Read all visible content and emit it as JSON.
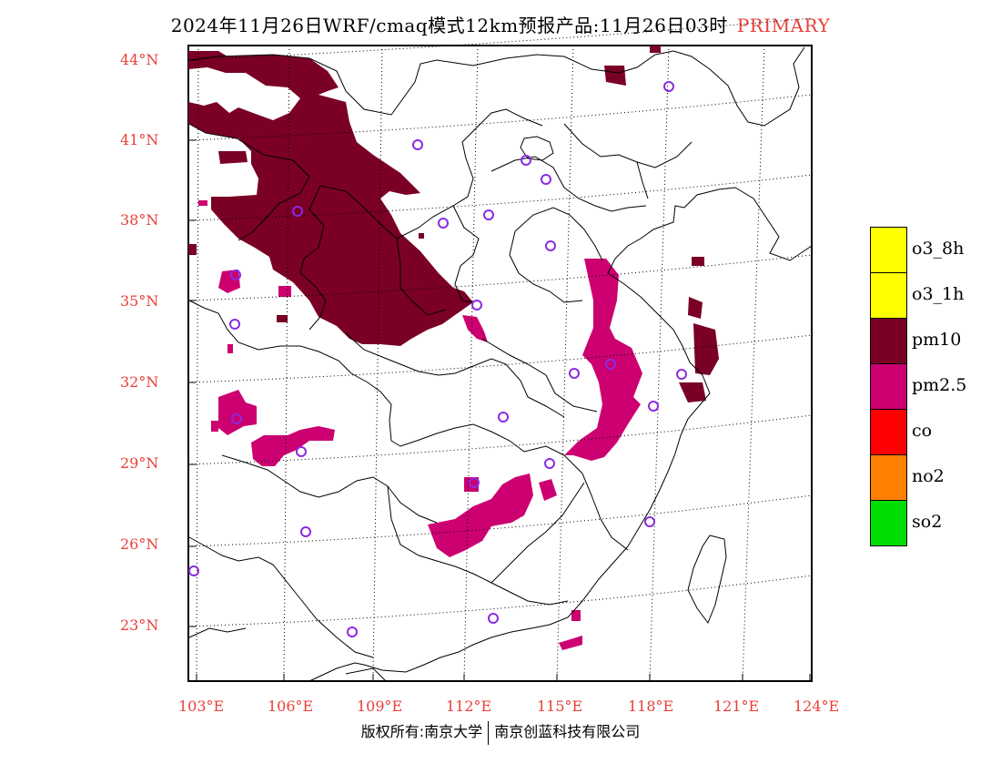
{
  "title": {
    "text": "2024年11月26日WRF/cmaq模式12km预报产品:11月26日03时",
    "tag": "PRIMARY"
  },
  "map": {
    "lat_labels": [
      "44°N",
      "41°N",
      "38°N",
      "35°N",
      "32°N",
      "29°N",
      "26°N",
      "23°N"
    ],
    "lon_labels": [
      "103°E",
      "106°E",
      "109°E",
      "112°E",
      "115°E",
      "118°E",
      "121°E",
      "124°E"
    ],
    "station_marker_color": "#8a2be2",
    "coastline_color": "#000000"
  },
  "legend": {
    "items": [
      {
        "label": "o3_8h",
        "color": "#ffff00"
      },
      {
        "label": "o3_1h",
        "color": "#ffff00"
      },
      {
        "label": "pm10",
        "color": "#7a0026"
      },
      {
        "label": "pm2.5",
        "color": "#cc0070"
      },
      {
        "label": "co",
        "color": "#ff0000"
      },
      {
        "label": "no2",
        "color": "#ff7f00"
      },
      {
        "label": "so2",
        "color": "#00dd00"
      }
    ]
  },
  "footer": {
    "left": "版权所有:南京大学",
    "right": "南京创蓝科技有限公司"
  }
}
